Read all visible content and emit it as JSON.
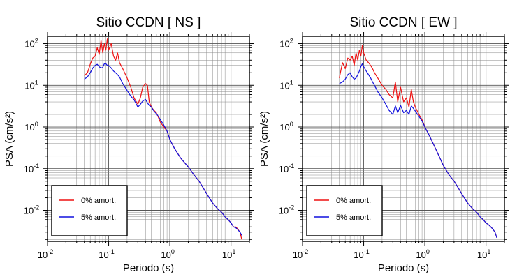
{
  "chart_data": [
    {
      "type": "line",
      "title": "Sitio CCDN [ NS ]",
      "xlabel": "Periodo (s)",
      "ylabel": "PSA (cm/s²)",
      "xscale": "log",
      "yscale": "log",
      "xlim": [
        0.01,
        20
      ],
      "ylim": [
        0.0018,
        150
      ],
      "x_ticks": [
        {
          "v": 0.01,
          "exp": "-2"
        },
        {
          "v": 0.1,
          "exp": "-1"
        },
        {
          "v": 1,
          "exp": "0"
        },
        {
          "v": 10,
          "exp": "1"
        }
      ],
      "y_ticks": [
        {
          "v": 0.01,
          "exp": "-2"
        },
        {
          "v": 0.1,
          "exp": "-1"
        },
        {
          "v": 1,
          "exp": "0"
        },
        {
          "v": 10,
          "exp": "1"
        },
        {
          "v": 100,
          "exp": "2"
        }
      ],
      "tick_base": "10",
      "grid": true,
      "legend_position": "bottom-left",
      "series": [
        {
          "name": "0% amort.",
          "color": "#ee1111",
          "x": [
            0.04,
            0.045,
            0.05,
            0.055,
            0.06,
            0.065,
            0.07,
            0.075,
            0.08,
            0.085,
            0.09,
            0.095,
            0.1,
            0.11,
            0.12,
            0.13,
            0.14,
            0.15,
            0.17,
            0.2,
            0.23,
            0.26,
            0.3,
            0.33,
            0.36,
            0.4,
            0.43,
            0.46,
            0.5,
            0.55,
            0.6,
            0.65,
            0.7,
            0.8,
            0.9,
            1.0,
            1.2,
            1.5,
            2.0,
            2.5,
            3.0,
            3.5,
            4.0,
            5.0,
            6.0,
            7.0,
            8.0,
            9.0,
            10.0,
            11.0,
            12.0,
            13.0,
            14.0,
            15.0
          ],
          "y": [
            17,
            20,
            32,
            45,
            50,
            80,
            55,
            120,
            60,
            100,
            70,
            130,
            70,
            100,
            50,
            40,
            60,
            35,
            25,
            15,
            9,
            5,
            3.5,
            5,
            9,
            11,
            10,
            4,
            3,
            2.5,
            2.2,
            1.7,
            1.3,
            1.0,
            0.8,
            0.5,
            0.3,
            0.18,
            0.11,
            0.07,
            0.05,
            0.035,
            0.025,
            0.015,
            0.011,
            0.009,
            0.007,
            0.006,
            0.005,
            0.004,
            0.004,
            0.0035,
            0.003,
            0.002
          ]
        },
        {
          "name": "5% amort.",
          "color": "#1111dd",
          "x": [
            0.04,
            0.045,
            0.05,
            0.055,
            0.06,
            0.065,
            0.07,
            0.075,
            0.08,
            0.085,
            0.09,
            0.095,
            0.1,
            0.11,
            0.12,
            0.13,
            0.14,
            0.15,
            0.17,
            0.2,
            0.23,
            0.26,
            0.3,
            0.33,
            0.36,
            0.4,
            0.43,
            0.46,
            0.5,
            0.55,
            0.6,
            0.65,
            0.7,
            0.8,
            0.9,
            1.0,
            1.2,
            1.5,
            2.0,
            2.5,
            3.0,
            3.5,
            4.0,
            5.0,
            6.0,
            7.0,
            8.0,
            9.0,
            10.0,
            11.0,
            12.0,
            13.0,
            14.0,
            15.0
          ],
          "y": [
            14,
            16,
            20,
            26,
            30,
            32,
            28,
            26,
            27,
            33,
            33,
            30,
            30,
            26,
            22,
            20,
            18,
            16,
            11,
            7.5,
            5.5,
            4.5,
            3.0,
            3.5,
            4.2,
            4.6,
            3.8,
            3.3,
            3.0,
            2.4,
            2.1,
            1.8,
            1.5,
            1.1,
            0.8,
            0.5,
            0.3,
            0.18,
            0.11,
            0.07,
            0.05,
            0.035,
            0.025,
            0.015,
            0.011,
            0.009,
            0.007,
            0.006,
            0.005,
            0.004,
            0.0038,
            0.0034,
            0.003,
            0.0025
          ]
        }
      ]
    },
    {
      "type": "line",
      "title": "Sitio CCDN [ EW ]",
      "xlabel": "Periodo (s)",
      "ylabel": "PSA (cm/s²)",
      "xscale": "log",
      "yscale": "log",
      "xlim": [
        0.01,
        20
      ],
      "ylim": [
        0.0018,
        150
      ],
      "x_ticks": [
        {
          "v": 0.01,
          "exp": "-2"
        },
        {
          "v": 0.1,
          "exp": "-1"
        },
        {
          "v": 1,
          "exp": "0"
        },
        {
          "v": 10,
          "exp": "1"
        }
      ],
      "y_ticks": [
        {
          "v": 0.01,
          "exp": "-2"
        },
        {
          "v": 0.1,
          "exp": "-1"
        },
        {
          "v": 1,
          "exp": "0"
        },
        {
          "v": 10,
          "exp": "1"
        },
        {
          "v": 100,
          "exp": "2"
        }
      ],
      "tick_base": "10",
      "grid": true,
      "legend_position": "bottom-left",
      "series": [
        {
          "name": "0% amort.",
          "color": "#ee1111",
          "x": [
            0.04,
            0.045,
            0.05,
            0.055,
            0.06,
            0.065,
            0.07,
            0.075,
            0.08,
            0.085,
            0.09,
            0.095,
            0.1,
            0.11,
            0.12,
            0.13,
            0.14,
            0.15,
            0.17,
            0.2,
            0.23,
            0.26,
            0.3,
            0.33,
            0.36,
            0.4,
            0.45,
            0.5,
            0.55,
            0.6,
            0.65,
            0.7,
            0.8,
            0.9,
            1.0,
            1.2,
            1.5,
            2.0,
            2.5,
            3.0,
            3.5,
            4.0,
            5.0,
            6.0,
            7.0,
            8.0,
            9.0,
            10.0,
            11.0,
            12.0,
            13.0,
            14.0,
            15.0
          ],
          "y": [
            15,
            35,
            25,
            45,
            40,
            50,
            30,
            60,
            40,
            70,
            50,
            90,
            60,
            40,
            35,
            30,
            25,
            20,
            15,
            10,
            8,
            6,
            5,
            12,
            4,
            9,
            4,
            5,
            3,
            8,
            4,
            3,
            2,
            1.5,
            1.0,
            0.6,
            0.3,
            0.12,
            0.07,
            0.05,
            0.035,
            0.025,
            0.015,
            0.011,
            0.009,
            0.007,
            0.006,
            0.005,
            0.0045,
            0.004,
            0.0035,
            0.003,
            0.0022
          ]
        },
        {
          "name": "5% amort.",
          "color": "#1111dd",
          "x": [
            0.04,
            0.045,
            0.05,
            0.055,
            0.06,
            0.065,
            0.07,
            0.075,
            0.08,
            0.085,
            0.09,
            0.095,
            0.1,
            0.11,
            0.12,
            0.13,
            0.14,
            0.15,
            0.17,
            0.2,
            0.23,
            0.26,
            0.3,
            0.33,
            0.36,
            0.4,
            0.45,
            0.5,
            0.55,
            0.6,
            0.65,
            0.7,
            0.8,
            0.9,
            1.0,
            1.2,
            1.5,
            2.0,
            2.5,
            3.0,
            3.5,
            4.0,
            5.0,
            6.0,
            7.0,
            8.0,
            9.0,
            10.0,
            11.0,
            12.0,
            13.0,
            14.0,
            15.0
          ],
          "y": [
            11,
            12,
            14,
            18,
            20,
            16,
            14,
            15,
            18,
            22,
            28,
            33,
            28,
            22,
            18,
            15,
            12,
            10,
            7,
            5,
            3.5,
            2.5,
            2.0,
            3.2,
            2.2,
            3.3,
            2.2,
            2.5,
            2.0,
            3.2,
            2.8,
            2.4,
            1.8,
            1.4,
            1.0,
            0.6,
            0.3,
            0.12,
            0.07,
            0.05,
            0.035,
            0.025,
            0.015,
            0.011,
            0.009,
            0.007,
            0.006,
            0.005,
            0.0045,
            0.004,
            0.0035,
            0.003,
            0.0022
          ]
        }
      ]
    }
  ]
}
